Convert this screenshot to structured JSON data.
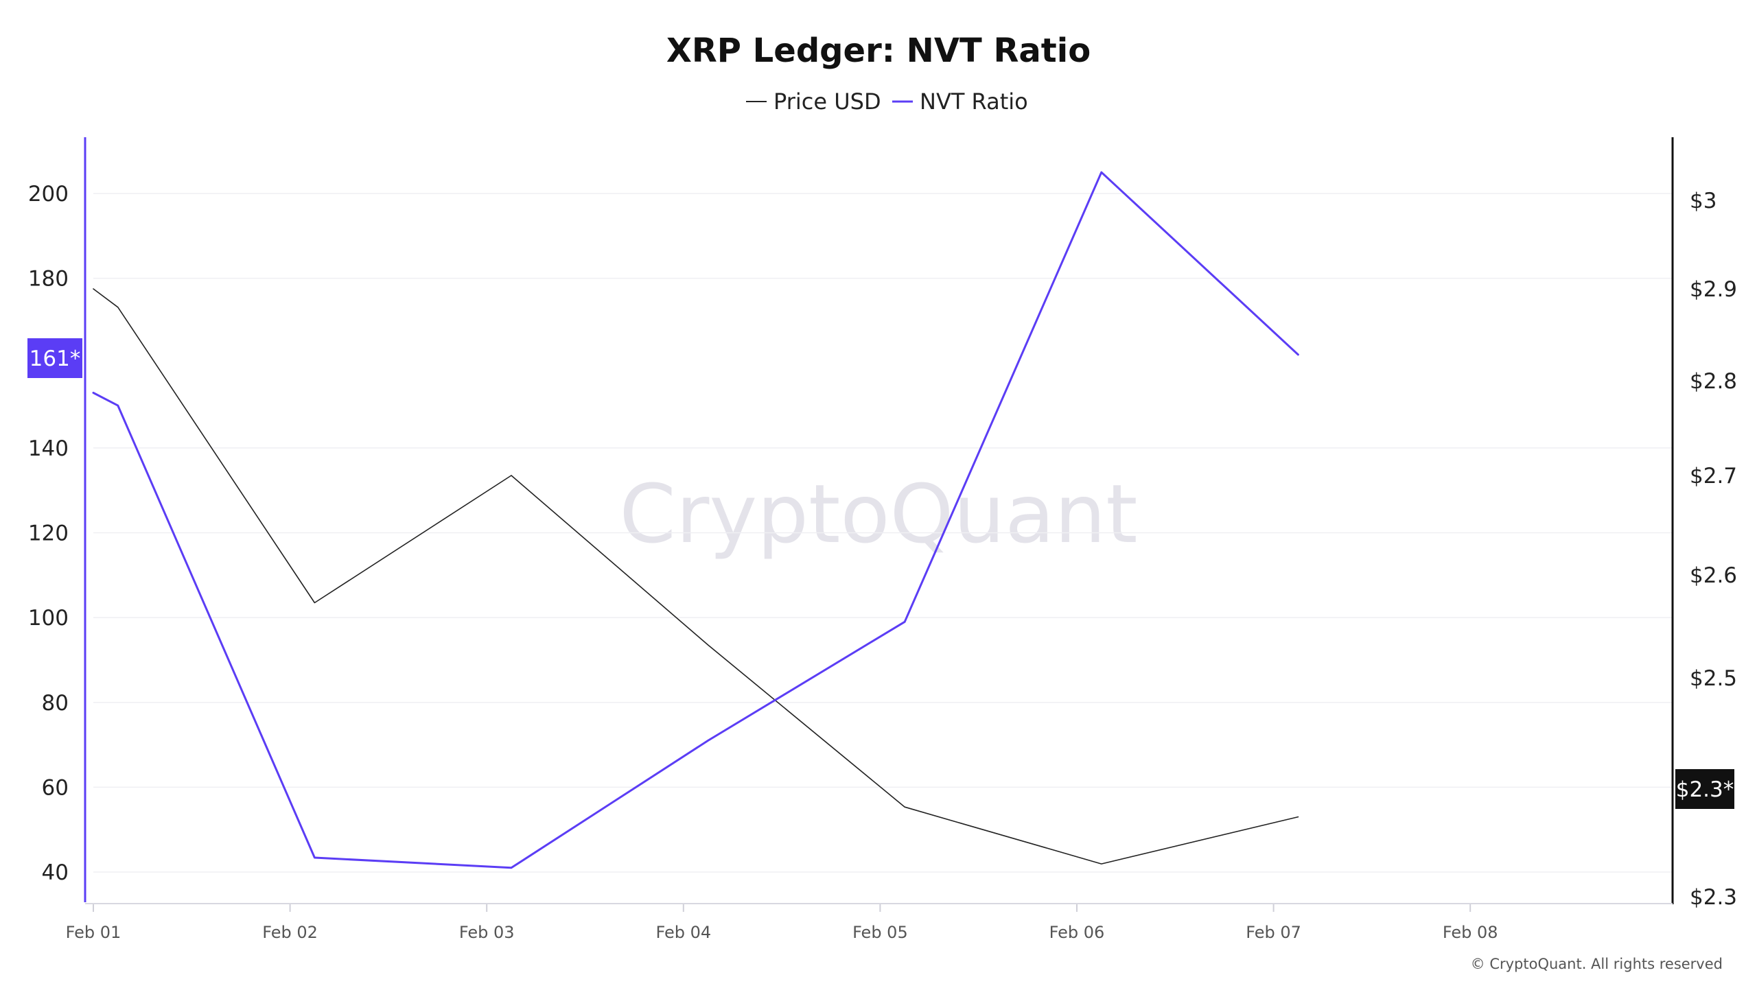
{
  "chart_data": {
    "type": "line",
    "title": "XRP Ledger: NVT Ratio",
    "watermark": "CryptoQuant",
    "copyright": "© CryptoQuant. All rights reserved",
    "x_ticks": [
      "Feb 01",
      "Feb 02",
      "Feb 03",
      "Feb 04",
      "Feb 05",
      "Feb 06",
      "Feb 07",
      "Feb 08"
    ],
    "x_range_days": [
      0,
      8.1
    ],
    "y_left": {
      "ticks": [
        200,
        180,
        140,
        120,
        100,
        80,
        60,
        40
      ],
      "range": [
        32.5,
        213
      ],
      "color": "#5b3df5"
    },
    "y_right": {
      "ticks": [
        "$3",
        "$2.9",
        "$2.8",
        "$2.7",
        "$2.6",
        "$2.5",
        "$2.3"
      ],
      "color": "#111111"
    },
    "series": [
      {
        "name": "Price USD",
        "axis": "right",
        "color": "#222222",
        "x": [
          0.0,
          0.125,
          1.125,
          2.125,
          3.125,
          4.125,
          5.125,
          6.125
        ],
        "y": [
          2.9,
          2.88,
          2.573,
          2.7,
          2.532,
          2.382,
          2.33,
          2.373
        ]
      },
      {
        "name": "NVT Ratio",
        "axis": "left",
        "color": "#5b3df5",
        "x": [
          0.0,
          0.125,
          1.125,
          2.125,
          3.125,
          4.125,
          5.125,
          6.125
        ],
        "y": [
          153,
          150,
          43.4,
          41,
          71,
          99,
          205,
          162
        ]
      }
    ],
    "badges": [
      {
        "label": "161*",
        "axis": "left",
        "color": "#5b3df5"
      },
      {
        "label": "$2.3*",
        "axis": "right",
        "color": "#111111"
      }
    ],
    "legend_position": "top-center",
    "grid": "horizontal"
  }
}
